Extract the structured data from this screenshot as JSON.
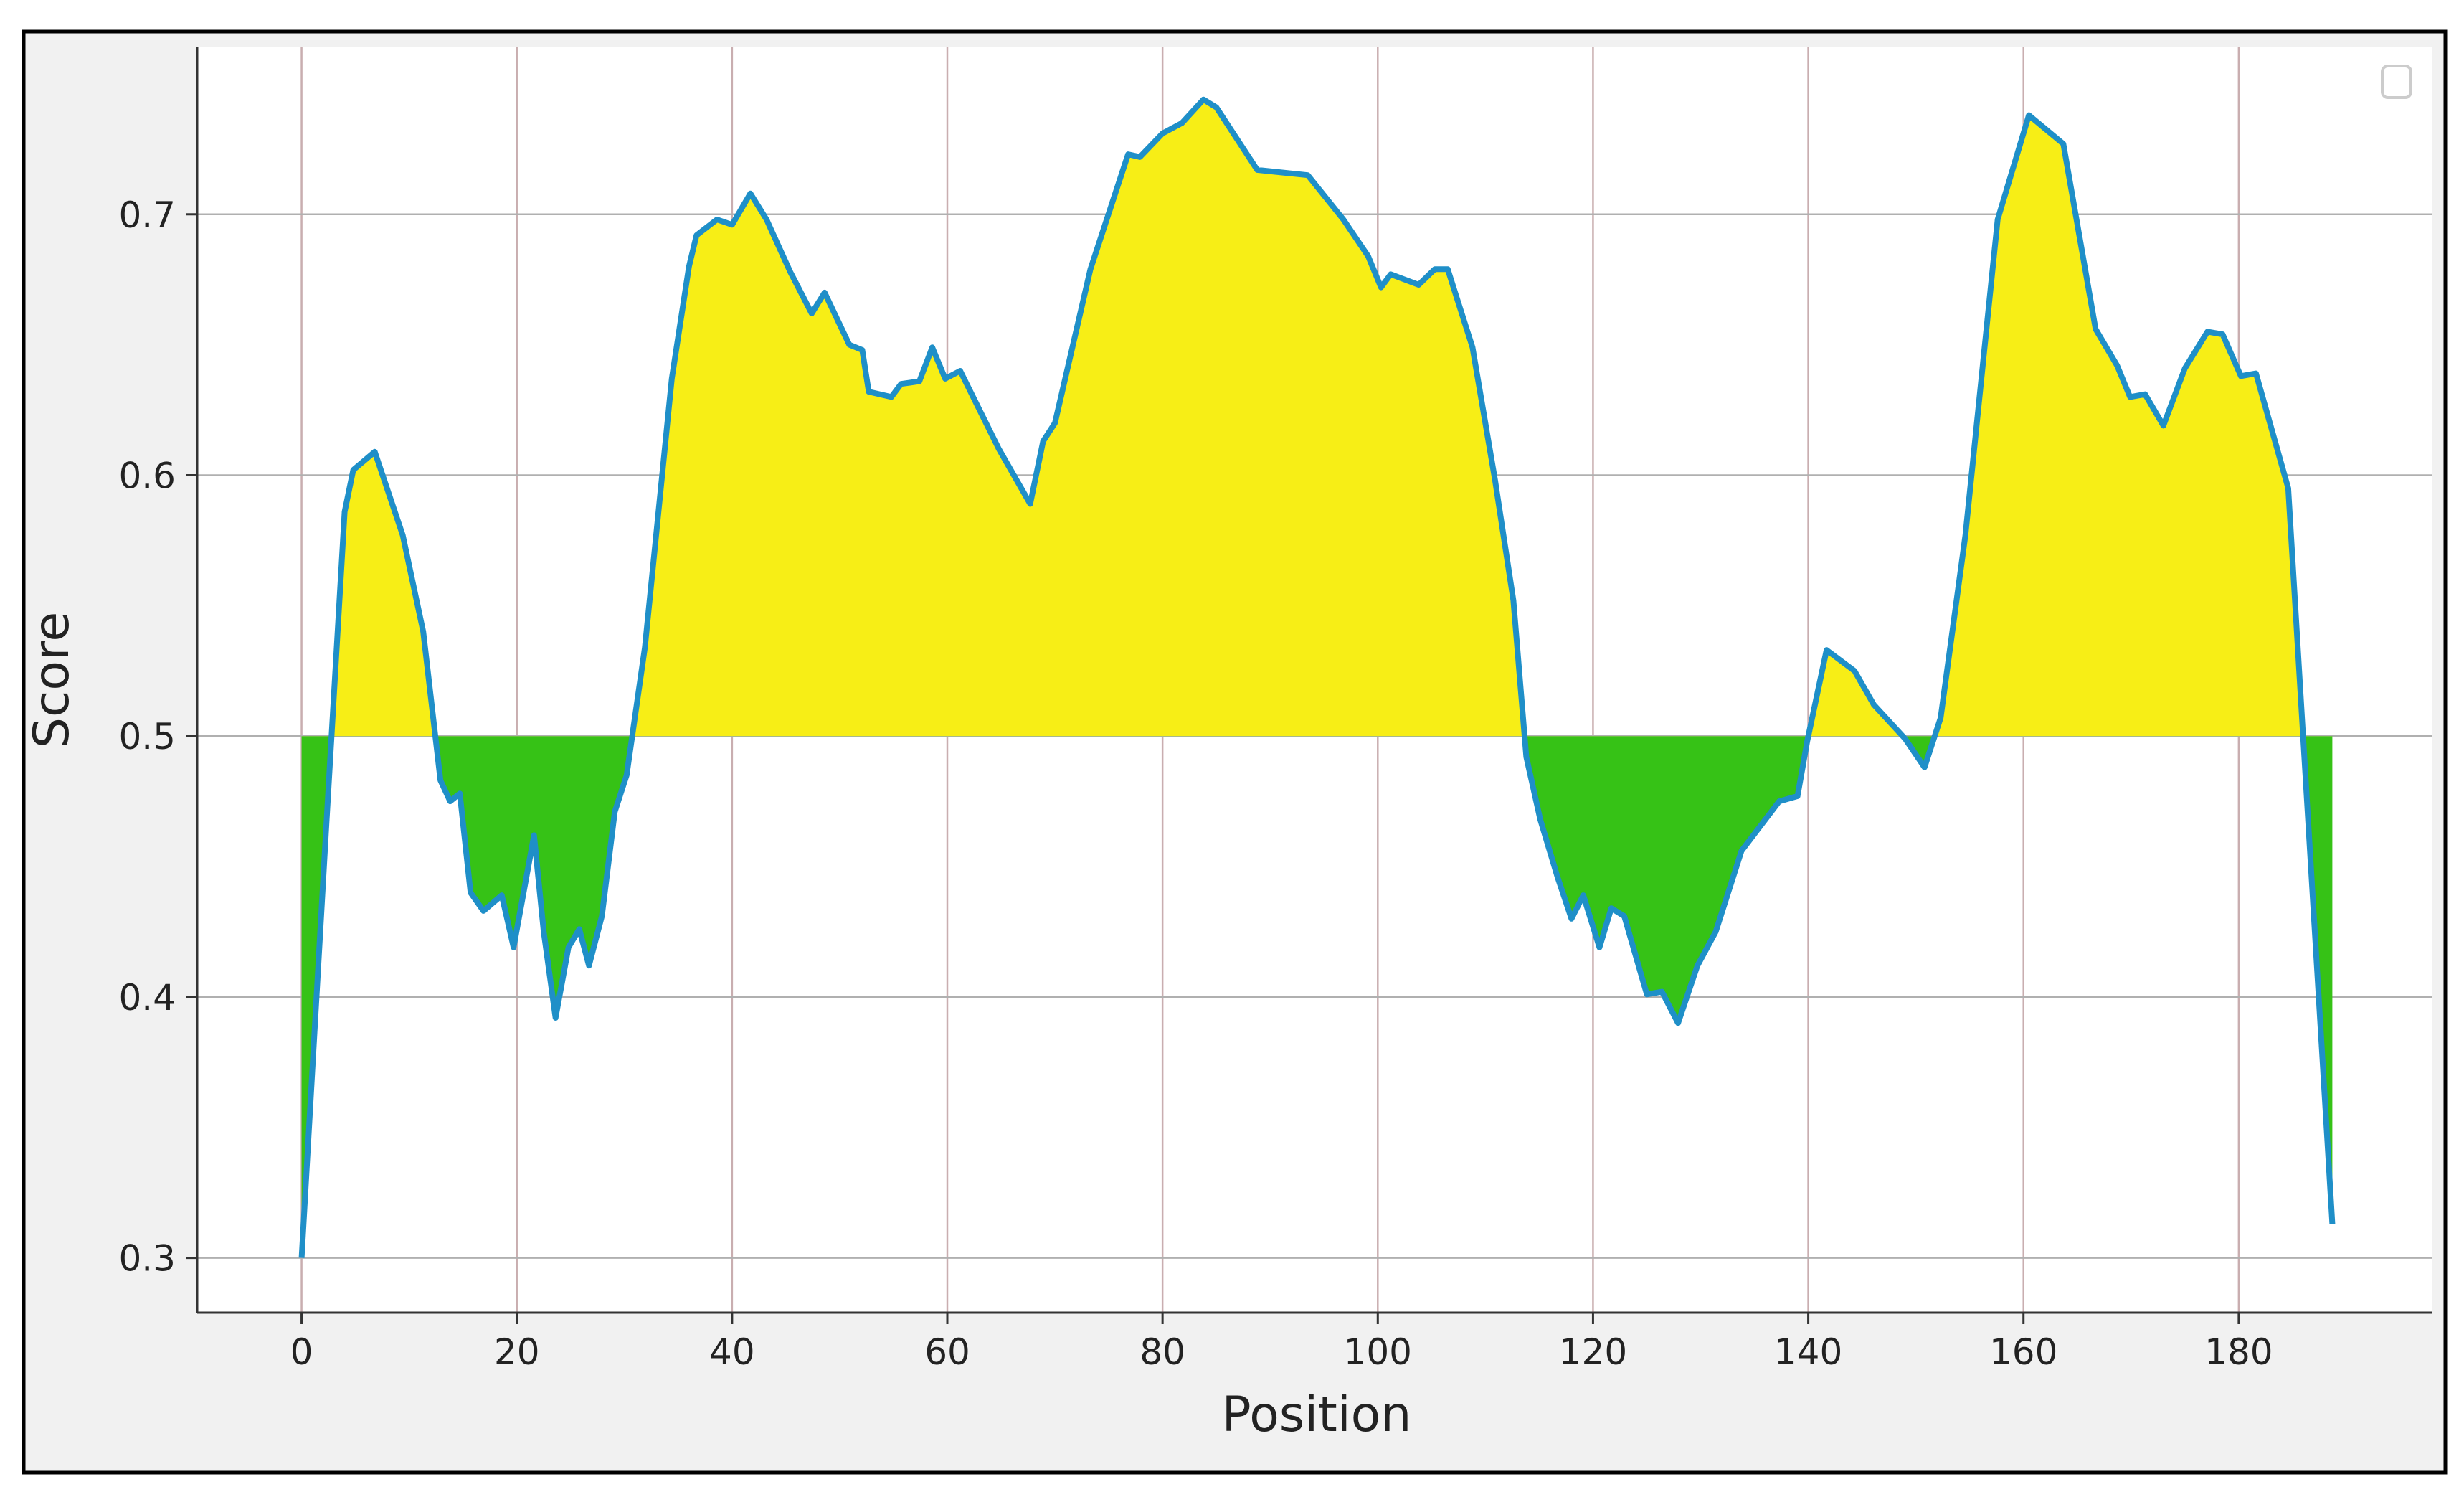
{
  "chart_data": {
    "type": "line",
    "x_label": "Position",
    "y_label": "Score",
    "x": [
      0,
      0.9,
      2.3,
      4,
      4.8,
      6.8,
      9.4,
      11.3,
      12.9,
      13.8,
      14.7,
      15.7,
      16.9,
      18.6,
      19.7,
      21.6,
      22.5,
      23.6,
      24.8,
      25.8,
      26.7,
      27.9,
      29.1,
      30.2,
      31.9,
      34.4,
      36,
      36.7,
      38.6,
      40,
      41.7,
      43.2,
      45.4,
      47.4,
      48.6,
      50.9,
      52.1,
      52.7,
      54.8,
      55.7,
      57.4,
      58.6,
      59.8,
      61.2,
      64.8,
      67.7,
      68.9,
      70,
      73.3,
      76.8,
      77.9,
      80,
      81.8,
      83.8,
      85,
      88.8,
      91.2,
      93.5,
      96.8,
      99.1,
      100.3,
      101.2,
      103.8,
      105.3,
      106.5,
      108.8,
      110.9,
      112.6,
      113.8,
      115.1,
      116.7,
      118,
      119.1,
      120.6,
      121.7,
      122.9,
      125,
      126.4,
      127.9,
      129.7,
      131.4,
      133.8,
      137.3,
      139,
      139.9,
      141.7,
      144.3,
      146.1,
      149,
      150.8,
      152.3,
      154.6,
      157.6,
      160.5,
      163.7,
      166.7,
      168.7,
      169.9,
      171.3,
      173,
      175,
      177.1,
      178.5,
      180.2,
      181.6,
      184.6,
      188.7
    ],
    "series": [
      {
        "color": "#1f8fc8",
        "values": [
          0.3,
          0.365,
          0.466,
          0.586,
          0.602,
          0.609,
          0.577,
          0.54,
          0.483,
          0.475,
          0.478,
          0.44,
          0.433,
          0.439,
          0.419,
          0.462,
          0.425,
          0.392,
          0.419,
          0.426,
          0.412,
          0.431,
          0.471,
          0.485,
          0.534,
          0.637,
          0.68,
          0.692,
          0.698,
          0.696,
          0.708,
          0.698,
          0.678,
          0.662,
          0.67,
          0.65,
          0.648,
          0.632,
          0.63,
          0.635,
          0.636,
          0.649,
          0.637,
          0.64,
          0.61,
          0.589,
          0.613,
          0.62,
          0.679,
          0.723,
          0.722,
          0.731,
          0.735,
          0.744,
          0.741,
          0.717,
          0.716,
          0.715,
          0.698,
          0.684,
          0.672,
          0.677,
          0.673,
          0.679,
          0.679,
          0.649,
          0.598,
          0.552,
          0.492,
          0.468,
          0.446,
          0.43,
          0.439,
          0.419,
          0.434,
          0.431,
          0.401,
          0.402,
          0.39,
          0.412,
          0.425,
          0.456,
          0.475,
          0.477,
          0.498,
          0.533,
          0.525,
          0.512,
          0.499,
          0.488,
          0.507,
          0.577,
          0.698,
          0.738,
          0.727,
          0.656,
          0.642,
          0.63,
          0.631,
          0.619,
          0.641,
          0.655,
          0.654,
          0.638,
          0.639,
          0.595,
          0.313
        ]
      }
    ],
    "fill_baseline": 0.5,
    "fill_above_color": "#f7ee16",
    "fill_below_color": "#36c216",
    "xlim": [
      -9.7,
      198
    ],
    "ylim": [
      0.279,
      0.764
    ],
    "xticks": [
      0,
      20,
      40,
      60,
      80,
      100,
      120,
      140,
      160,
      180
    ],
    "yticks": [
      0.3,
      0.4,
      0.5,
      0.6,
      0.7
    ],
    "grid": true,
    "grid_x_color": "#c9aeb0",
    "grid_y_color": "#b0b0b0"
  }
}
